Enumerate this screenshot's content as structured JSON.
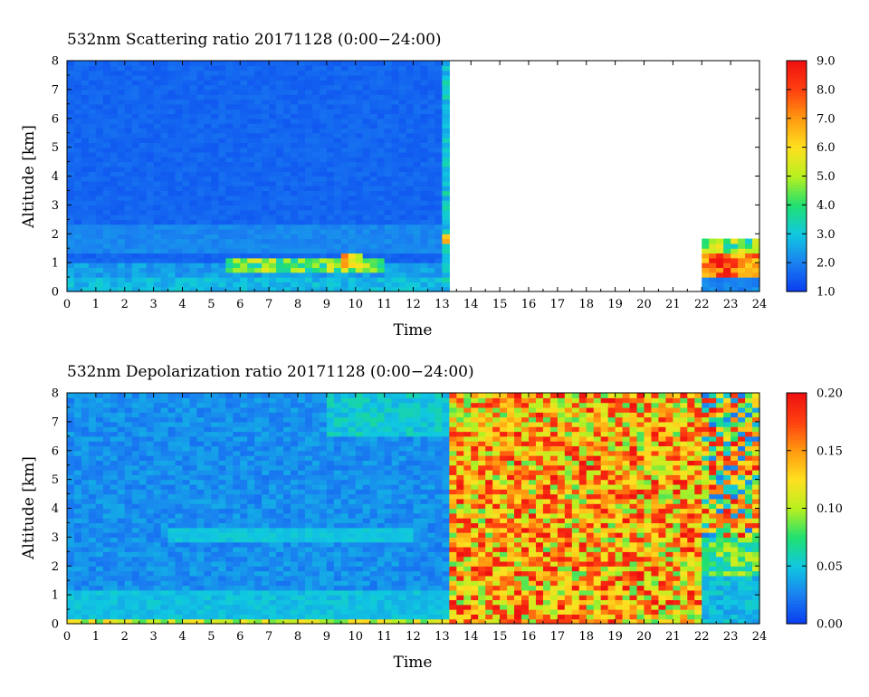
{
  "chart_data": [
    {
      "type": "heatmap",
      "title": "532nm Scattering ratio  20171128 (0:00−24:00)",
      "xlabel": "Time",
      "ylabel": "Altitude [km]",
      "xlim": [
        0,
        24
      ],
      "ylim": [
        0,
        8
      ],
      "x_ticks": [
        "0",
        "1",
        "2",
        "3",
        "4",
        "5",
        "6",
        "7",
        "8",
        "9",
        "10",
        "11",
        "12",
        "13",
        "14",
        "15",
        "16",
        "17",
        "18",
        "19",
        "20",
        "21",
        "22",
        "23",
        "24"
      ],
      "y_ticks": [
        "0",
        "1",
        "2",
        "3",
        "4",
        "5",
        "6",
        "7",
        "8"
      ],
      "colorbar": {
        "min": 1.0,
        "max": 9.0,
        "ticks": [
          "1.0",
          "2.0",
          "3.0",
          "4.0",
          "5.0",
          "6.0",
          "7.0",
          "8.0",
          "9.0"
        ],
        "colormap": [
          "#0a3cf0",
          "#1a80f0",
          "#10c8e0",
          "#20e070",
          "#b8f020",
          "#ffe020",
          "#ff9a10",
          "#ff4010",
          "#ee1010"
        ]
      },
      "value_range": [
        1.0,
        9.0
      ],
      "features": {
        "data_segments": [
          [
            0,
            13.2
          ],
          [
            22,
            24
          ]
        ],
        "no_data_segments": [
          [
            13.2,
            22
          ]
        ],
        "background_value": 1.6,
        "boundary_layer_top_km": 1.0,
        "low_level_max_value": 9.0,
        "low_level_max_time": [
          22.2,
          24
        ],
        "low_level_max_alt_km": [
          0.5,
          1.8
        ]
      }
    },
    {
      "type": "heatmap",
      "title": "532nm Depolarization ratio  20171128 (0:00−24:00)",
      "xlabel": "Time",
      "ylabel": "Altitude [km]",
      "xlim": [
        0,
        24
      ],
      "ylim": [
        0,
        8
      ],
      "x_ticks": [
        "0",
        "1",
        "2",
        "3",
        "4",
        "5",
        "6",
        "7",
        "8",
        "9",
        "10",
        "11",
        "12",
        "13",
        "14",
        "15",
        "16",
        "17",
        "18",
        "19",
        "20",
        "21",
        "22",
        "23",
        "24"
      ],
      "y_ticks": [
        "0",
        "1",
        "2",
        "3",
        "4",
        "5",
        "6",
        "7",
        "8"
      ],
      "colorbar": {
        "min": 0.0,
        "max": 0.2,
        "ticks": [
          "0.00",
          "0.05",
          "0.10",
          "0.15",
          "0.20"
        ],
        "colormap": [
          "#0a3cf0",
          "#1a80f0",
          "#10c8e0",
          "#20e070",
          "#b8f020",
          "#ffe020",
          "#ff9a10",
          "#ff4010",
          "#ee1010"
        ]
      },
      "value_range": [
        0.0,
        0.2
      ],
      "features": {
        "low_depol_segment": [
          0,
          13.2
        ],
        "noisy_segment": [
          13.2,
          22
        ],
        "mixed_segment": [
          22,
          24
        ],
        "background_value": 0.03,
        "noise_range": [
          0.08,
          0.2
        ]
      }
    }
  ]
}
